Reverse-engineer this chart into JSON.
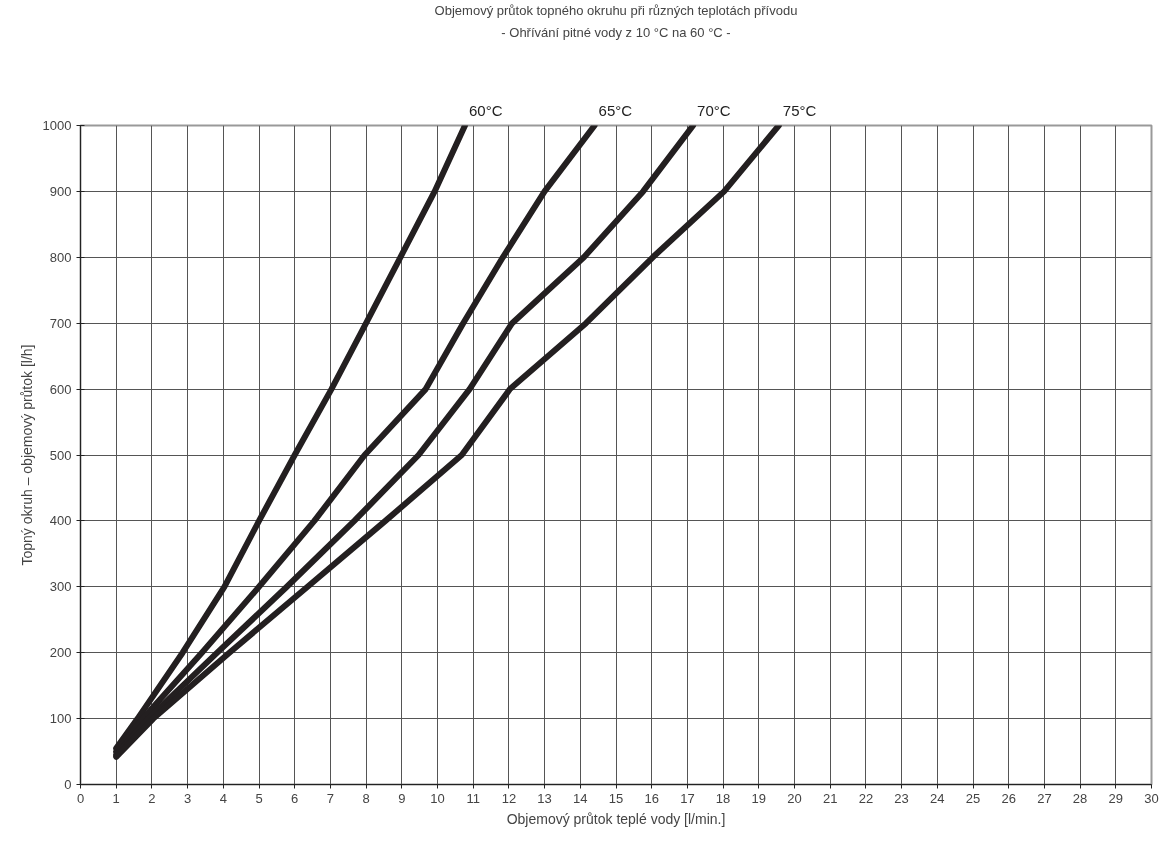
{
  "chart_data": {
    "type": "line",
    "title": "Objemový průtok topného okruhu při různých teplotách přívodu",
    "subtitle": "- Ohřívání pitné vody z 10 °C na 60 °C -",
    "xlabel": "Objemový průtok teplé vody [l/min.]",
    "ylabel": "Topný okruh – objemový průtok [l/h]",
    "series": [
      {
        "name": "60°C",
        "color": "#231f20",
        "x": [
          1,
          1.6,
          2.86,
          4.03,
          5.0,
          6.0,
          7.03,
          8.0,
          8.96,
          9.92,
          10.77
        ],
        "values": [
          55,
          100,
          200,
          300,
          400,
          500,
          600,
          700,
          800,
          900,
          1000
        ]
      },
      {
        "name": "65°C",
        "color": "#231f20",
        "x": [
          1,
          1.75,
          3.4,
          5.0,
          6.55,
          7.96,
          9.67,
          10.72,
          11.83,
          13.0,
          14.4
        ],
        "values": [
          50,
          100,
          200,
          300,
          400,
          500,
          600,
          700,
          800,
          900,
          1000
        ]
      },
      {
        "name": "70°C",
        "color": "#231f20",
        "x": [
          1,
          1.9,
          3.83,
          5.78,
          7.67,
          9.47,
          10.9,
          12.09,
          14.1,
          15.76,
          17.16
        ],
        "values": [
          45,
          100,
          200,
          300,
          400,
          500,
          600,
          700,
          800,
          900,
          1000
        ]
      },
      {
        "name": "75°C",
        "color": "#231f20",
        "x": [
          1,
          2.04,
          4.17,
          6.36,
          8.54,
          10.68,
          12.03,
          14.16,
          16.03,
          18.03,
          19.56
        ],
        "values": [
          42,
          100,
          200,
          300,
          400,
          500,
          600,
          700,
          800,
          900,
          1000
        ]
      }
    ],
    "xlim": [
      0,
      30
    ],
    "xticks": [
      0,
      1,
      2,
      3,
      4,
      5,
      6,
      7,
      8,
      9,
      10,
      11,
      12,
      13,
      14,
      15,
      16,
      17,
      18,
      19,
      20,
      21,
      22,
      23,
      24,
      25,
      26,
      27,
      28,
      29,
      30
    ],
    "ylim": [
      0,
      1000
    ],
    "yticks": [
      0,
      100,
      200,
      300,
      400,
      500,
      600,
      700,
      800,
      900,
      1000
    ],
    "grid": true,
    "legend": false,
    "marker": "none",
    "line_style": "solid"
  }
}
